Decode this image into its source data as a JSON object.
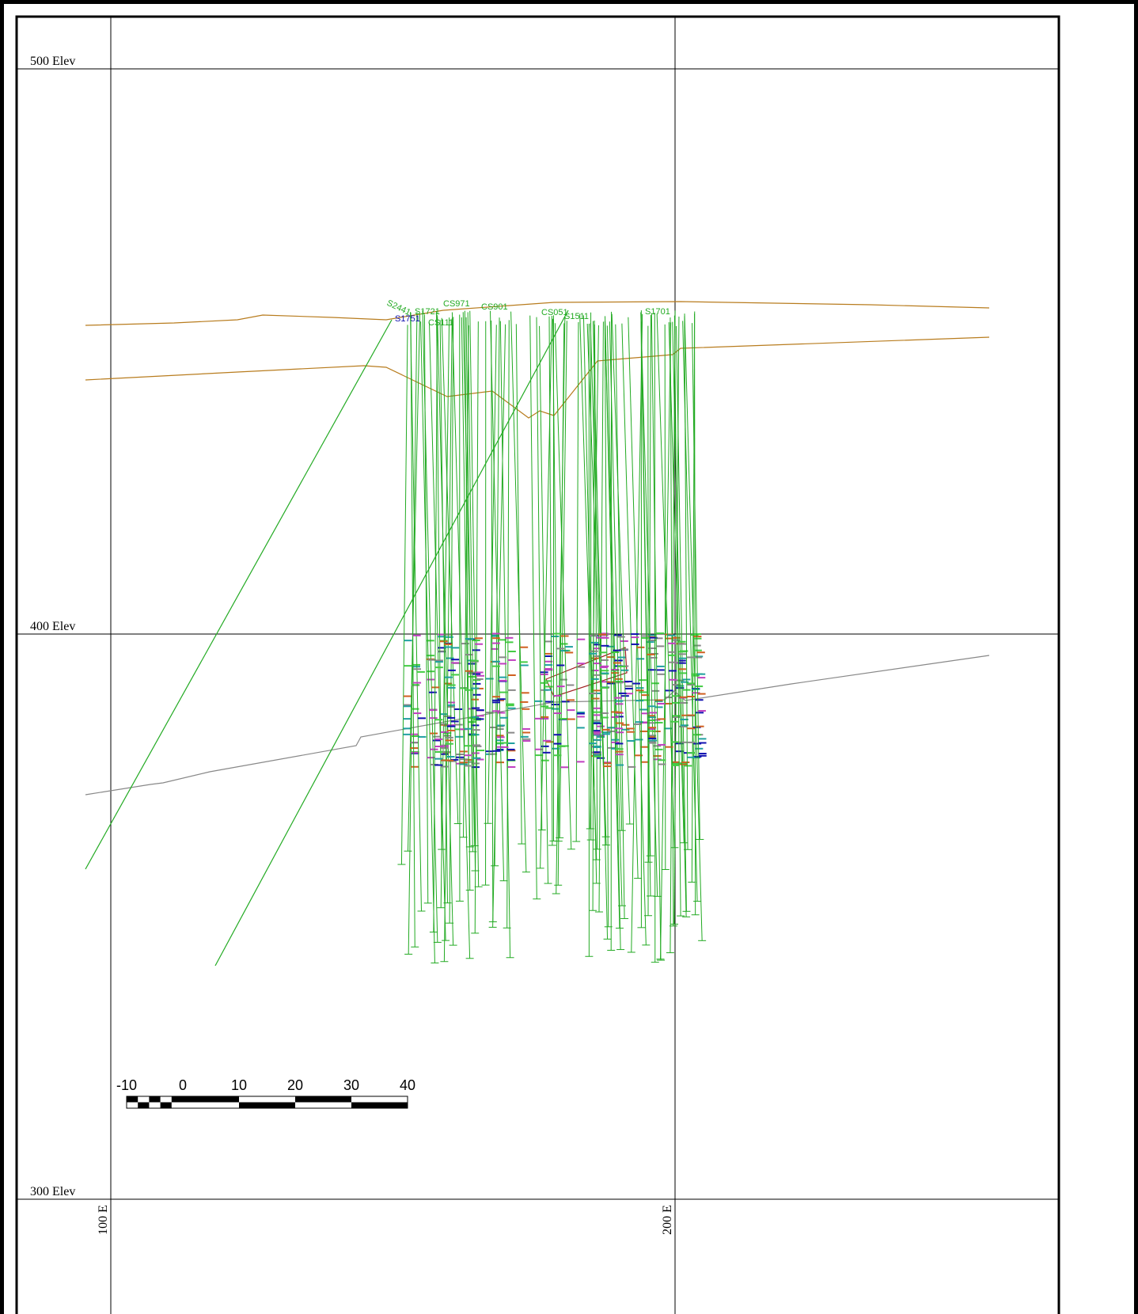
{
  "grid": {
    "elevation_labels": [
      "500 Elev",
      "400 Elev",
      "300 Elev"
    ],
    "easting_labels": [
      "100 E",
      "200 E"
    ]
  },
  "scale_bar": {
    "labels": [
      -10,
      0,
      10,
      20,
      30,
      40
    ]
  },
  "holes": [
    {
      "name": "S2441"
    },
    {
      "name": "S1721"
    },
    {
      "name": "S1751"
    },
    {
      "name": "CS971"
    },
    {
      "name": "CS111"
    },
    {
      "name": "CS901"
    },
    {
      "name": "CS051"
    },
    {
      "name": "S1511"
    },
    {
      "name": "S1701"
    }
  ]
}
